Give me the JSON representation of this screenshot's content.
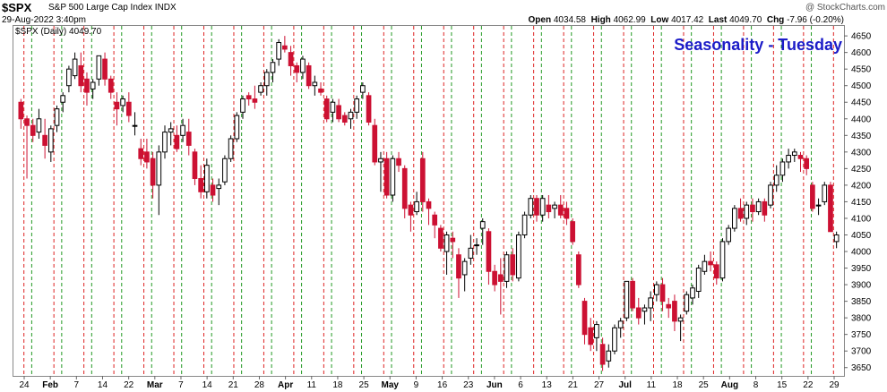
{
  "header": {
    "symbol": "$SPX",
    "name": "S&P 500 Large Cap Index  INDX",
    "date": "29-Aug-2022 3:40pm",
    "open_label": "Open",
    "open": "4034.58",
    "high_label": "High",
    "high": "4062.99",
    "low_label": "Low",
    "low": "4017.42",
    "last_label": "Last",
    "last": "4049.70",
    "chg_label": "Chg",
    "chg": "-7.96 (-0.20%)",
    "credit": "@ StockCharts.com",
    "series_label": "$SPX (Daily) 4049.70"
  },
  "colors": {
    "up": "#000000",
    "down": "#cc1133",
    "title": "#1c1cc8",
    "red_line": "#dd2222",
    "green_line": "#229922"
  },
  "chart_data": {
    "type": "candlestick",
    "title": "Seasonality - Tuesday",
    "y_ticks": [
      3650,
      3700,
      3750,
      3800,
      3850,
      3900,
      3950,
      4000,
      4050,
      4100,
      4150,
      4200,
      4250,
      4300,
      4350,
      4400,
      4450,
      4500,
      4550,
      4600,
      4650
    ],
    "x_labels": [
      "24",
      "Feb",
      "7",
      "14",
      "22",
      "Mar",
      "7",
      "14",
      "21",
      "28",
      "Apr",
      "11",
      "18",
      "25",
      "May",
      "9",
      "16",
      "23",
      "Jun",
      "6",
      "13",
      "21",
      "27",
      "Jul",
      "11",
      "18",
      "25",
      "Aug",
      "8",
      "15",
      "22",
      "29"
    ],
    "ylim": [
      3625,
      4680
    ],
    "series": [
      {
        "name": "$SPX",
        "points": [
          [
            4450,
            4460,
            4370,
            4400
          ],
          [
            4400,
            4410,
            4220,
            4380
          ],
          [
            4380,
            4400,
            4330,
            4350
          ],
          [
            4360,
            4430,
            4340,
            4400
          ],
          [
            4350,
            4400,
            4280,
            4320
          ],
          [
            4300,
            4380,
            4270,
            4370
          ],
          [
            4380,
            4440,
            4360,
            4430
          ],
          [
            4450,
            4480,
            4420,
            4470
          ],
          [
            4500,
            4560,
            4480,
            4550
          ],
          [
            4530,
            4600,
            4520,
            4580
          ],
          [
            4560,
            4600,
            4480,
            4500
          ],
          [
            4520,
            4540,
            4440,
            4480
          ],
          [
            4490,
            4520,
            4460,
            4510
          ],
          [
            4520,
            4590,
            4500,
            4590
          ],
          [
            4580,
            4600,
            4500,
            4520
          ],
          [
            4520,
            4530,
            4460,
            4480
          ],
          [
            4450,
            4480,
            4380,
            4430
          ],
          [
            4440,
            4470,
            4420,
            4460
          ],
          [
            4450,
            4480,
            4390,
            4410
          ],
          [
            4380,
            4420,
            4350,
            4380
          ],
          [
            4310,
            4340,
            4260,
            4280
          ],
          [
            4300,
            4340,
            4250,
            4270
          ],
          [
            4280,
            4300,
            4160,
            4200
          ],
          [
            4200,
            4320,
            4110,
            4300
          ],
          [
            4300,
            4380,
            4280,
            4360
          ],
          [
            4360,
            4390,
            4320,
            4370
          ],
          [
            4350,
            4380,
            4300,
            4310
          ],
          [
            4350,
            4400,
            4330,
            4380
          ],
          [
            4360,
            4400,
            4290,
            4320
          ],
          [
            4300,
            4310,
            4200,
            4220
          ],
          [
            4220,
            4260,
            4160,
            4180
          ],
          [
            4180,
            4280,
            4160,
            4260
          ],
          [
            4200,
            4220,
            4150,
            4170
          ],
          [
            4190,
            4220,
            4140,
            4200
          ],
          [
            4210,
            4290,
            4200,
            4280
          ],
          [
            4280,
            4350,
            4270,
            4340
          ],
          [
            4340,
            4420,
            4330,
            4410
          ],
          [
            4420,
            4470,
            4400,
            4460
          ],
          [
            4470,
            4480,
            4440,
            4460
          ],
          [
            4460,
            4500,
            4430,
            4450
          ],
          [
            4480,
            4510,
            4470,
            4500
          ],
          [
            4500,
            4550,
            4470,
            4540
          ],
          [
            4540,
            4580,
            4510,
            4570
          ],
          [
            4580,
            4640,
            4560,
            4630
          ],
          [
            4620,
            4650,
            4600,
            4610
          ],
          [
            4600,
            4620,
            4530,
            4560
          ],
          [
            4560,
            4570,
            4510,
            4540
          ],
          [
            4540,
            4590,
            4520,
            4580
          ],
          [
            4560,
            4570,
            4490,
            4500
          ],
          [
            4500,
            4530,
            4470,
            4510
          ],
          [
            4490,
            4510,
            4470,
            4480
          ],
          [
            4460,
            4470,
            4390,
            4400
          ],
          [
            4420,
            4460,
            4390,
            4450
          ],
          [
            4440,
            4460,
            4390,
            4400
          ],
          [
            4410,
            4420,
            4380,
            4390
          ],
          [
            4400,
            4430,
            4370,
            4420
          ],
          [
            4420,
            4470,
            4400,
            4460
          ],
          [
            4480,
            4510,
            4460,
            4500
          ],
          [
            4470,
            4480,
            4380,
            4390
          ],
          [
            4380,
            4400,
            4260,
            4270
          ],
          [
            4270,
            4300,
            4180,
            4280
          ],
          [
            4280,
            4300,
            4160,
            4170
          ],
          [
            4170,
            4290,
            4150,
            4280
          ],
          [
            4280,
            4300,
            4240,
            4260
          ],
          [
            4250,
            4260,
            4100,
            4130
          ],
          [
            4140,
            4150,
            4060,
            4110
          ],
          [
            4120,
            4180,
            4110,
            4150
          ],
          [
            4280,
            4300,
            4120,
            4150
          ],
          [
            4150,
            4160,
            4080,
            4130
          ],
          [
            4110,
            4120,
            4040,
            4080
          ],
          [
            4070,
            4080,
            4000,
            4010
          ],
          [
            4000,
            4060,
            3930,
            4050
          ],
          [
            4040,
            4060,
            3980,
            4030
          ],
          [
            3990,
            4010,
            3860,
            3920
          ],
          [
            3930,
            3980,
            3880,
            3970
          ],
          [
            3980,
            4050,
            3960,
            4010
          ],
          [
            4020,
            4040,
            3990,
            4020
          ],
          [
            4070,
            4100,
            4020,
            4090
          ],
          [
            4060,
            4070,
            3900,
            3940
          ],
          [
            3940,
            3960,
            3880,
            3900
          ],
          [
            3930,
            3980,
            3810,
            3910
          ],
          [
            3910,
            4000,
            3890,
            3990
          ],
          [
            3990,
            4010,
            3910,
            3930
          ],
          [
            3920,
            4060,
            3910,
            4050
          ],
          [
            4050,
            4120,
            4040,
            4110
          ],
          [
            4110,
            4170,
            4100,
            4160
          ],
          [
            4160,
            4170,
            4090,
            4110
          ],
          [
            4110,
            4170,
            4090,
            4160
          ],
          [
            4140,
            4170,
            4100,
            4120
          ],
          [
            4130,
            4150,
            4100,
            4140
          ],
          [
            4140,
            4170,
            4100,
            4110
          ],
          [
            4130,
            4150,
            4080,
            4100
          ],
          [
            4090,
            4100,
            4020,
            4030
          ],
          [
            3990,
            4000,
            3890,
            3900
          ],
          [
            3850,
            3860,
            3720,
            3750
          ],
          [
            3770,
            3800,
            3700,
            3720
          ],
          [
            3740,
            3790,
            3700,
            3780
          ],
          [
            3720,
            3740,
            3640,
            3660
          ],
          [
            3670,
            3720,
            3650,
            3700
          ],
          [
            3700,
            3780,
            3690,
            3770
          ],
          [
            3770,
            3800,
            3740,
            3790
          ],
          [
            3800,
            3910,
            3790,
            3910
          ],
          [
            3910,
            3920,
            3820,
            3830
          ],
          [
            3830,
            3860,
            3780,
            3800
          ],
          [
            3820,
            3840,
            3780,
            3830
          ],
          [
            3830,
            3880,
            3790,
            3860
          ],
          [
            3870,
            3910,
            3850,
            3900
          ],
          [
            3900,
            3920,
            3820,
            3850
          ],
          [
            3840,
            3860,
            3800,
            3830
          ],
          [
            3850,
            3870,
            3760,
            3790
          ],
          [
            3790,
            3810,
            3730,
            3800
          ],
          [
            3820,
            3880,
            3810,
            3870
          ],
          [
            3860,
            3900,
            3840,
            3890
          ],
          [
            3880,
            3960,
            3860,
            3950
          ],
          [
            3940,
            3990,
            3930,
            3970
          ],
          [
            3970,
            4000,
            3940,
            3960
          ],
          [
            3960,
            3970,
            3900,
            3920
          ],
          [
            3920,
            4040,
            3910,
            4030
          ],
          [
            4030,
            4080,
            4020,
            4070
          ],
          [
            4070,
            4140,
            4060,
            4130
          ],
          [
            4130,
            4160,
            4090,
            4100
          ],
          [
            4100,
            4150,
            4080,
            4140
          ],
          [
            4140,
            4160,
            4090,
            4120
          ],
          [
            4120,
            4160,
            4110,
            4150
          ],
          [
            4150,
            4160,
            4090,
            4110
          ],
          [
            4140,
            4210,
            4130,
            4200
          ],
          [
            4200,
            4260,
            4180,
            4230
          ],
          [
            4230,
            4280,
            4210,
            4270
          ],
          [
            4270,
            4310,
            4250,
            4290
          ],
          [
            4290,
            4310,
            4270,
            4300
          ],
          [
            4290,
            4300,
            4240,
            4280
          ],
          [
            4280,
            4290,
            4230,
            4250
          ],
          [
            4200,
            4210,
            4120,
            4130
          ],
          [
            4140,
            4160,
            4110,
            4140
          ],
          [
            4150,
            4210,
            4140,
            4200
          ],
          [
            4200,
            4210,
            4060,
            4060
          ],
          [
            4030,
            4060,
            4010,
            4050
          ]
        ]
      }
    ]
  }
}
